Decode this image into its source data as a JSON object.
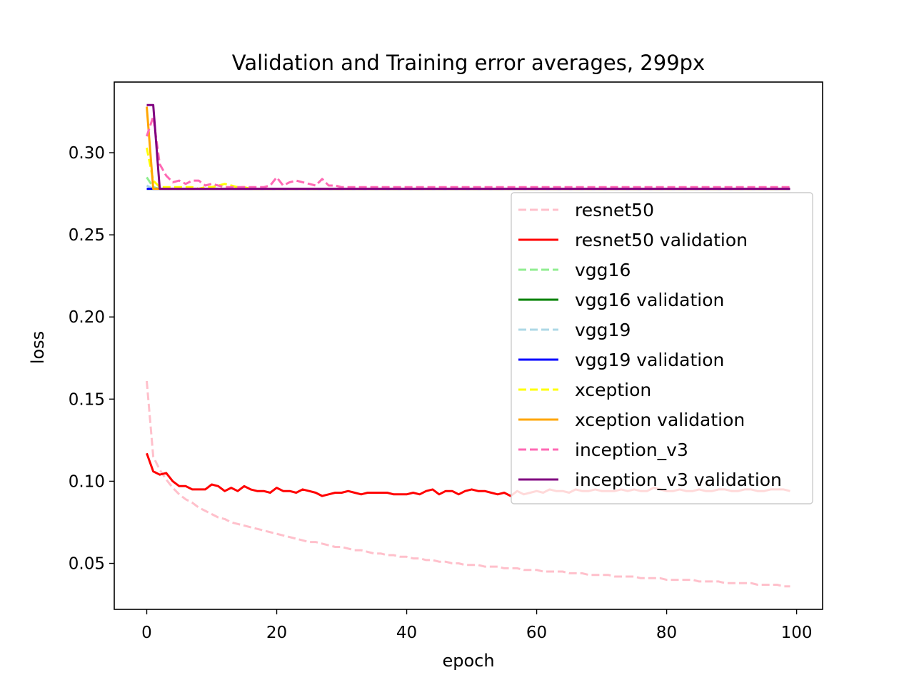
{
  "chart_data": {
    "type": "line",
    "title": "Validation and Training error averages, 299px",
    "xlabel": "epoch",
    "ylabel": "loss",
    "xlim": [
      -5,
      104
    ],
    "ylim": [
      0.022,
      0.343
    ],
    "xticks": [
      0,
      20,
      40,
      60,
      80,
      100
    ],
    "yticks": [
      0.05,
      0.1,
      0.15,
      0.2,
      0.25,
      0.3
    ],
    "xtick_labels": [
      "0",
      "20",
      "40",
      "60",
      "80",
      "100"
    ],
    "ytick_labels": [
      "0.05",
      "0.10",
      "0.15",
      "0.20",
      "0.25",
      "0.30"
    ],
    "grid": false,
    "legend_position": "center-right",
    "series": [
      {
        "name": "resnet50",
        "color": "#ffc0cb",
        "dash": true,
        "x_start": 0,
        "values": [
          0.161,
          0.115,
          0.107,
          0.101,
          0.096,
          0.092,
          0.089,
          0.087,
          0.084,
          0.082,
          0.08,
          0.078,
          0.077,
          0.075,
          0.074,
          0.073,
          0.072,
          0.071,
          0.07,
          0.069,
          0.068,
          0.067,
          0.066,
          0.065,
          0.064,
          0.063,
          0.063,
          0.062,
          0.061,
          0.06,
          0.06,
          0.059,
          0.058,
          0.058,
          0.057,
          0.056,
          0.056,
          0.055,
          0.055,
          0.054,
          0.054,
          0.053,
          0.053,
          0.052,
          0.052,
          0.051,
          0.051,
          0.05,
          0.05,
          0.049,
          0.049,
          0.049,
          0.048,
          0.048,
          0.048,
          0.047,
          0.047,
          0.047,
          0.046,
          0.046,
          0.046,
          0.045,
          0.045,
          0.045,
          0.045,
          0.044,
          0.044,
          0.044,
          0.043,
          0.043,
          0.043,
          0.043,
          0.042,
          0.042,
          0.042,
          0.042,
          0.041,
          0.041,
          0.041,
          0.041,
          0.04,
          0.04,
          0.04,
          0.04,
          0.04,
          0.039,
          0.039,
          0.039,
          0.039,
          0.038,
          0.038,
          0.038,
          0.038,
          0.038,
          0.037,
          0.037,
          0.037,
          0.037,
          0.036,
          0.036
        ]
      },
      {
        "name": "resnet50 validation",
        "color": "#ff0000",
        "dash": false,
        "x_start": 0,
        "values": [
          0.117,
          0.106,
          0.104,
          0.105,
          0.1,
          0.097,
          0.097,
          0.095,
          0.095,
          0.095,
          0.098,
          0.097,
          0.094,
          0.096,
          0.094,
          0.097,
          0.095,
          0.094,
          0.094,
          0.093,
          0.096,
          0.094,
          0.094,
          0.093,
          0.095,
          0.094,
          0.093,
          0.091,
          0.092,
          0.093,
          0.093,
          0.094,
          0.093,
          0.092,
          0.093,
          0.093,
          0.093,
          0.093,
          0.092,
          0.092,
          0.092,
          0.093,
          0.092,
          0.094,
          0.095,
          0.092,
          0.094,
          0.094,
          0.092,
          0.094,
          0.095,
          0.094,
          0.094,
          0.093,
          0.092,
          0.093,
          0.091,
          0.094,
          0.092,
          0.093,
          0.094,
          0.093,
          0.095,
          0.094,
          0.094,
          0.093,
          0.095,
          0.094,
          0.094,
          0.095,
          0.094,
          0.094,
          0.094,
          0.095,
          0.094,
          0.095,
          0.094,
          0.094,
          0.096,
          0.095,
          0.094,
          0.094,
          0.095,
          0.094,
          0.094,
          0.095,
          0.094,
          0.094,
          0.095,
          0.095,
          0.094,
          0.094,
          0.095,
          0.095,
          0.094,
          0.094,
          0.095,
          0.095,
          0.095,
          0.094
        ]
      },
      {
        "name": "vgg16",
        "color": "#90ee90",
        "dash": true,
        "x_start": 0,
        "values": [
          0.285,
          0.279,
          0.278,
          0.278,
          0.278,
          0.278,
          0.278,
          0.278,
          0.278,
          0.278,
          0.278,
          0.278,
          0.278,
          0.278,
          0.278,
          0.278,
          0.278,
          0.278,
          0.278,
          0.278,
          0.278,
          0.278,
          0.278,
          0.278,
          0.278,
          0.278,
          0.278,
          0.278,
          0.278,
          0.278,
          0.278,
          0.278,
          0.278,
          0.278,
          0.278,
          0.278,
          0.278,
          0.278,
          0.278,
          0.278,
          0.278,
          0.278,
          0.278,
          0.278,
          0.278,
          0.278,
          0.278,
          0.278,
          0.278,
          0.278,
          0.278,
          0.278,
          0.278,
          0.278,
          0.278,
          0.278,
          0.278,
          0.278,
          0.278,
          0.278,
          0.278,
          0.278,
          0.278,
          0.278,
          0.278,
          0.278,
          0.278,
          0.278,
          0.278,
          0.278,
          0.278,
          0.278,
          0.278,
          0.278,
          0.278,
          0.278,
          0.278,
          0.278,
          0.278,
          0.278,
          0.278,
          0.278,
          0.278,
          0.278,
          0.278,
          0.278,
          0.278,
          0.278,
          0.278,
          0.278,
          0.278,
          0.278,
          0.278,
          0.278,
          0.278,
          0.278,
          0.278,
          0.278,
          0.278,
          0.278
        ]
      },
      {
        "name": "vgg16 validation",
        "color": "#008000",
        "dash": false,
        "x_start": 0,
        "values": [
          0.278,
          0.278,
          0.278,
          0.278,
          0.278,
          0.278,
          0.278,
          0.278,
          0.278,
          0.278,
          0.278,
          0.278,
          0.278,
          0.278,
          0.278,
          0.278,
          0.278,
          0.278,
          0.278,
          0.278,
          0.278,
          0.278,
          0.278,
          0.278,
          0.278,
          0.278,
          0.278,
          0.278,
          0.278,
          0.278,
          0.278,
          0.278,
          0.278,
          0.278,
          0.278,
          0.278,
          0.278,
          0.278,
          0.278,
          0.278,
          0.278,
          0.278,
          0.278,
          0.278,
          0.278,
          0.278,
          0.278,
          0.278,
          0.278,
          0.278,
          0.278,
          0.278,
          0.278,
          0.278,
          0.278,
          0.278,
          0.278,
          0.278,
          0.278,
          0.278,
          0.278,
          0.278,
          0.278,
          0.278,
          0.278,
          0.278,
          0.278,
          0.278,
          0.278,
          0.278,
          0.278,
          0.278,
          0.278,
          0.278,
          0.278,
          0.278,
          0.278,
          0.278,
          0.278,
          0.278,
          0.278,
          0.278,
          0.278,
          0.278,
          0.278,
          0.278,
          0.278,
          0.278,
          0.278,
          0.278,
          0.278,
          0.278,
          0.278,
          0.278,
          0.278,
          0.278,
          0.278,
          0.278,
          0.278,
          0.278
        ]
      },
      {
        "name": "vgg19",
        "color": "#add8e6",
        "dash": true,
        "x_start": 0,
        "values": [
          0.28,
          0.278,
          0.278,
          0.278,
          0.278,
          0.278,
          0.278,
          0.278,
          0.278,
          0.278,
          0.278,
          0.278,
          0.278,
          0.278,
          0.278,
          0.278,
          0.278,
          0.278,
          0.278,
          0.278,
          0.278,
          0.278,
          0.278,
          0.278,
          0.278,
          0.278,
          0.278,
          0.278,
          0.278,
          0.278,
          0.278,
          0.278,
          0.278,
          0.278,
          0.278,
          0.278,
          0.278,
          0.278,
          0.278,
          0.278,
          0.278,
          0.278,
          0.278,
          0.278,
          0.278,
          0.278,
          0.278,
          0.278,
          0.278,
          0.278,
          0.278,
          0.278,
          0.278,
          0.278,
          0.278,
          0.278,
          0.278,
          0.278,
          0.278,
          0.278,
          0.278,
          0.278,
          0.278,
          0.278,
          0.278,
          0.278,
          0.278,
          0.278,
          0.278,
          0.278,
          0.278,
          0.278,
          0.278,
          0.278,
          0.278,
          0.278,
          0.278,
          0.278,
          0.278,
          0.278,
          0.278,
          0.278,
          0.278,
          0.278,
          0.278,
          0.278,
          0.278,
          0.278,
          0.278,
          0.278,
          0.278,
          0.278,
          0.278,
          0.278,
          0.278,
          0.278,
          0.278,
          0.278,
          0.278,
          0.278
        ]
      },
      {
        "name": "vgg19 validation",
        "color": "#0000ff",
        "dash": false,
        "x_start": 0,
        "values": [
          0.278,
          0.278,
          0.278,
          0.278,
          0.278,
          0.278,
          0.278,
          0.278,
          0.278,
          0.278,
          0.278,
          0.278,
          0.278,
          0.278,
          0.278,
          0.278,
          0.278,
          0.278,
          0.278,
          0.278,
          0.278,
          0.278,
          0.278,
          0.278,
          0.278,
          0.278,
          0.278,
          0.278,
          0.278,
          0.278,
          0.278,
          0.278,
          0.278,
          0.278,
          0.278,
          0.278,
          0.278,
          0.278,
          0.278,
          0.278,
          0.278,
          0.278,
          0.278,
          0.278,
          0.278,
          0.278,
          0.278,
          0.278,
          0.278,
          0.278,
          0.278,
          0.278,
          0.278,
          0.278,
          0.278,
          0.278,
          0.278,
          0.278,
          0.278,
          0.278,
          0.278,
          0.278,
          0.278,
          0.278,
          0.278,
          0.278,
          0.278,
          0.278,
          0.278,
          0.278,
          0.278,
          0.278,
          0.278,
          0.278,
          0.278,
          0.278,
          0.278,
          0.278,
          0.278,
          0.278,
          0.278,
          0.278,
          0.278,
          0.278,
          0.278,
          0.278,
          0.278,
          0.278,
          0.278,
          0.278,
          0.278,
          0.278,
          0.278,
          0.278,
          0.278,
          0.278,
          0.278,
          0.278,
          0.278,
          0.278
        ]
      },
      {
        "name": "xception",
        "color": "#ffff00",
        "dash": true,
        "x_start": 0,
        "values": [
          0.303,
          0.283,
          0.279,
          0.279,
          0.279,
          0.279,
          0.279,
          0.279,
          0.278,
          0.279,
          0.279,
          0.28,
          0.281,
          0.28,
          0.279,
          0.279,
          0.278,
          0.278,
          0.278,
          0.278,
          0.278,
          0.278,
          0.278,
          0.278,
          0.278,
          0.278,
          0.278,
          0.278,
          0.278,
          0.278,
          0.278,
          0.278,
          0.278,
          0.278,
          0.278,
          0.278,
          0.278,
          0.278,
          0.278,
          0.278,
          0.278,
          0.278,
          0.278,
          0.278,
          0.278,
          0.278,
          0.278,
          0.278,
          0.278,
          0.278,
          0.278,
          0.278,
          0.278,
          0.278,
          0.278,
          0.278,
          0.278,
          0.278,
          0.278,
          0.278,
          0.278,
          0.278,
          0.278,
          0.278,
          0.278,
          0.278,
          0.278,
          0.278,
          0.278,
          0.278,
          0.278,
          0.278,
          0.278,
          0.278,
          0.278,
          0.278,
          0.278,
          0.278,
          0.278,
          0.278,
          0.278,
          0.278,
          0.278,
          0.278,
          0.278,
          0.278,
          0.278,
          0.278,
          0.278,
          0.278,
          0.278,
          0.278,
          0.278,
          0.278,
          0.278,
          0.278,
          0.278,
          0.278,
          0.278,
          0.278
        ]
      },
      {
        "name": "xception validation",
        "color": "#ffa500",
        "dash": false,
        "x_start": 0,
        "values": [
          0.328,
          0.278,
          0.278,
          0.278,
          0.278,
          0.278,
          0.278,
          0.278,
          0.278,
          0.278,
          0.278,
          0.278,
          0.278,
          0.278,
          0.278,
          0.278,
          0.278,
          0.278,
          0.278,
          0.278,
          0.278,
          0.278,
          0.278,
          0.278,
          0.278,
          0.278,
          0.278,
          0.278,
          0.278,
          0.278,
          0.278,
          0.278,
          0.278,
          0.278,
          0.278,
          0.278,
          0.278,
          0.278,
          0.278,
          0.278,
          0.278,
          0.278,
          0.278,
          0.278,
          0.278,
          0.278,
          0.278,
          0.278,
          0.278,
          0.278,
          0.278,
          0.278,
          0.278,
          0.278,
          0.278,
          0.278,
          0.278,
          0.278,
          0.278,
          0.278,
          0.278,
          0.278,
          0.278,
          0.278,
          0.278,
          0.278,
          0.278,
          0.278,
          0.278,
          0.278,
          0.278,
          0.278,
          0.278,
          0.278,
          0.278,
          0.278,
          0.278,
          0.278,
          0.278,
          0.278,
          0.278,
          0.278,
          0.278,
          0.278,
          0.278,
          0.278,
          0.278,
          0.278,
          0.278,
          0.278,
          0.278,
          0.278,
          0.278,
          0.278,
          0.278,
          0.278,
          0.278,
          0.278,
          0.278,
          0.278
        ]
      },
      {
        "name": "inception_v3",
        "color": "#ff69b4",
        "dash": true,
        "x_start": 0,
        "values": [
          0.31,
          0.322,
          0.293,
          0.286,
          0.282,
          0.283,
          0.281,
          0.283,
          0.283,
          0.28,
          0.281,
          0.28,
          0.279,
          0.279,
          0.279,
          0.279,
          0.279,
          0.279,
          0.279,
          0.28,
          0.285,
          0.28,
          0.282,
          0.283,
          0.282,
          0.281,
          0.28,
          0.284,
          0.28,
          0.28,
          0.279,
          0.279,
          0.279,
          0.279,
          0.279,
          0.279,
          0.279,
          0.279,
          0.279,
          0.279,
          0.279,
          0.279,
          0.279,
          0.279,
          0.279,
          0.279,
          0.279,
          0.279,
          0.279,
          0.279,
          0.279,
          0.279,
          0.279,
          0.279,
          0.279,
          0.279,
          0.279,
          0.279,
          0.279,
          0.279,
          0.279,
          0.279,
          0.279,
          0.279,
          0.279,
          0.279,
          0.279,
          0.279,
          0.279,
          0.279,
          0.279,
          0.279,
          0.279,
          0.279,
          0.279,
          0.279,
          0.279,
          0.279,
          0.279,
          0.279,
          0.279,
          0.279,
          0.279,
          0.279,
          0.279,
          0.279,
          0.279,
          0.279,
          0.279,
          0.279,
          0.279,
          0.279,
          0.279,
          0.279,
          0.279,
          0.279,
          0.279,
          0.279,
          0.279,
          0.279
        ]
      },
      {
        "name": "inception_v3 validation",
        "color": "#800080",
        "dash": false,
        "x_start": 0,
        "values": [
          0.329,
          0.329,
          0.278,
          0.278,
          0.278,
          0.278,
          0.278,
          0.278,
          0.278,
          0.278,
          0.278,
          0.278,
          0.278,
          0.278,
          0.278,
          0.278,
          0.278,
          0.278,
          0.278,
          0.278,
          0.278,
          0.278,
          0.278,
          0.278,
          0.278,
          0.278,
          0.278,
          0.278,
          0.278,
          0.278,
          0.278,
          0.278,
          0.278,
          0.278,
          0.278,
          0.278,
          0.278,
          0.278,
          0.278,
          0.278,
          0.278,
          0.278,
          0.278,
          0.278,
          0.278,
          0.278,
          0.278,
          0.278,
          0.278,
          0.278,
          0.278,
          0.278,
          0.278,
          0.278,
          0.278,
          0.278,
          0.278,
          0.278,
          0.278,
          0.278,
          0.278,
          0.278,
          0.278,
          0.278,
          0.278,
          0.278,
          0.278,
          0.278,
          0.278,
          0.278,
          0.278,
          0.278,
          0.278,
          0.278,
          0.278,
          0.278,
          0.278,
          0.278,
          0.278,
          0.278,
          0.278,
          0.278,
          0.278,
          0.278,
          0.278,
          0.278,
          0.278,
          0.278,
          0.278,
          0.278,
          0.278,
          0.278,
          0.278,
          0.278,
          0.278,
          0.278,
          0.278,
          0.278,
          0.278,
          0.278
        ]
      }
    ]
  }
}
